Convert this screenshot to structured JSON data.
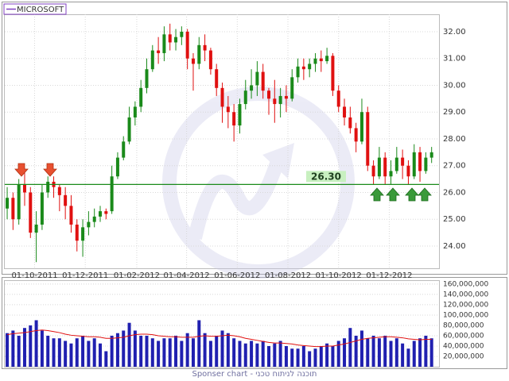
{
  "chart_data": [
    {
      "type": "candlestick",
      "series": [
        {
          "name": "MICROSOFT",
          "color": "#8040c0"
        }
      ],
      "up_color": "#1a8a1a",
      "down_color": "#e01010",
      "x": [
        "29-08-2011",
        "05-09-2011",
        "12-09-2011",
        "19-09-2011",
        "26-09-2011",
        "03-10-2011",
        "10-10-2011",
        "17-10-2011",
        "24-10-2011",
        "31-10-2011",
        "07-11-2011",
        "14-11-2011",
        "21-11-2011",
        "28-11-2011",
        "05-12-2011",
        "12-12-2011",
        "19-12-2011",
        "26-12-2011",
        "02-01-2012",
        "09-01-2012",
        "16-01-2012",
        "23-01-2012",
        "30-01-2012",
        "06-02-2012",
        "13-02-2012",
        "20-02-2012",
        "27-02-2012",
        "05-03-2012",
        "12-03-2012",
        "19-03-2012",
        "26-03-2012",
        "02-04-2012",
        "09-04-2012",
        "16-04-2012",
        "23-04-2012",
        "30-04-2012",
        "07-05-2012",
        "14-05-2012",
        "21-05-2012",
        "28-05-2012",
        "04-06-2012",
        "11-06-2012",
        "18-06-2012",
        "25-06-2012",
        "02-07-2012",
        "09-07-2012",
        "16-07-2012",
        "23-07-2012",
        "30-07-2012",
        "06-08-2012",
        "13-08-2012",
        "20-08-2012",
        "27-08-2012",
        "03-09-2012",
        "10-09-2012",
        "17-09-2012",
        "24-09-2012",
        "01-10-2012",
        "08-10-2012",
        "15-10-2012",
        "22-10-2012",
        "29-10-2012",
        "05-11-2012",
        "12-11-2012",
        "19-11-2012",
        "26-11-2012",
        "03-12-2012",
        "10-12-2012",
        "17-12-2012",
        "24-12-2012",
        "31-12-2012",
        "07-01-2013",
        "14-01-2013",
        "21-01-2013"
      ],
      "open": [
        25.4,
        25.8,
        25.0,
        26.3,
        26.0,
        24.5,
        24.8,
        26.0,
        26.4,
        26.2,
        25.9,
        25.5,
        24.8,
        24.2,
        24.7,
        24.9,
        25.1,
        25.3,
        25.3,
        26.6,
        27.3,
        27.9,
        28.8,
        29.2,
        29.9,
        30.6,
        31.3,
        31.2,
        31.9,
        31.6,
        31.8,
        32.0,
        31.0,
        30.8,
        31.5,
        31.3,
        30.6,
        29.9,
        29.2,
        29.0,
        28.5,
        29.3,
        29.8,
        30.0,
        30.5,
        29.8,
        29.5,
        29.3,
        29.6,
        29.5,
        30.3,
        30.7,
        30.6,
        30.8,
        31.0,
        30.9,
        31.1,
        29.8,
        29.2,
        28.8,
        28.4,
        27.9,
        29.0,
        27.0,
        26.6,
        27.3,
        26.6,
        26.8,
        27.3,
        27.0,
        26.6,
        27.5,
        26.8,
        27.3
      ],
      "high": [
        26.2,
        26.0,
        26.5,
        26.9,
        26.2,
        25.3,
        26.3,
        26.6,
        26.6,
        26.3,
        26.2,
        25.9,
        25.0,
        25.0,
        25.3,
        25.4,
        25.5,
        25.4,
        27.0,
        27.5,
        28.1,
        29.2,
        29.4,
        30.2,
        31.0,
        31.5,
        31.8,
        32.2,
        32.3,
        32.1,
        32.2,
        32.1,
        31.2,
        31.8,
        31.9,
        31.4,
        30.8,
        30.1,
        29.6,
        29.3,
        29.5,
        30.2,
        30.6,
        30.9,
        30.8,
        29.9,
        30.2,
        29.9,
        30.0,
        30.6,
        31.0,
        31.0,
        31.0,
        31.2,
        31.3,
        31.4,
        31.2,
        30.0,
        29.5,
        29.2,
        28.6,
        29.5,
        29.2,
        27.2,
        27.7,
        27.5,
        27.2,
        27.7,
        27.6,
        27.2,
        27.8,
        27.7,
        27.5,
        27.7
      ],
      "low": [
        25.0,
        24.6,
        24.8,
        25.5,
        24.3,
        23.4,
        24.6,
        25.8,
        25.8,
        25.3,
        25.0,
        24.5,
        23.8,
        23.6,
        24.4,
        24.7,
        24.9,
        25.0,
        25.2,
        26.5,
        27.2,
        27.8,
        28.5,
        29.0,
        29.7,
        30.5,
        30.8,
        30.9,
        31.3,
        31.3,
        31.5,
        30.6,
        29.8,
        30.6,
        30.9,
        30.4,
        29.6,
        28.6,
        28.4,
        27.9,
        28.2,
        29.1,
        29.5,
        29.6,
        29.5,
        28.9,
        28.6,
        28.8,
        29.0,
        29.4,
        30.1,
        30.2,
        30.3,
        30.5,
        30.5,
        30.8,
        29.6,
        29.0,
        28.5,
        28.2,
        27.5,
        27.8,
        26.8,
        26.3,
        26.5,
        26.3,
        26.3,
        26.7,
        26.5,
        26.3,
        26.5,
        26.4,
        26.7,
        27.1
      ],
      "close": [
        25.8,
        25.0,
        26.3,
        26.0,
        24.5,
        24.8,
        26.0,
        26.4,
        26.2,
        25.9,
        25.5,
        24.8,
        24.2,
        24.7,
        24.9,
        25.1,
        25.3,
        25.2,
        26.6,
        27.3,
        27.9,
        28.8,
        29.2,
        29.9,
        30.6,
        31.3,
        31.2,
        31.9,
        31.6,
        31.8,
        32.0,
        31.0,
        30.8,
        31.5,
        31.3,
        30.6,
        29.9,
        29.2,
        29.0,
        28.5,
        29.3,
        29.8,
        30.0,
        30.5,
        29.8,
        29.5,
        29.3,
        29.6,
        29.5,
        30.3,
        30.7,
        30.6,
        30.8,
        31.0,
        30.9,
        31.1,
        29.8,
        29.2,
        28.8,
        28.4,
        27.9,
        29.0,
        27.0,
        26.6,
        27.3,
        26.6,
        26.8,
        27.3,
        27.0,
        26.6,
        27.5,
        26.8,
        27.3,
        27.5
      ],
      "xlim": [
        "28-08-2011",
        "28-01-2013"
      ],
      "xticks": [
        "01-10-2011",
        "01-12-2011",
        "01-02-2012",
        "01-04-2012",
        "01-06-2012",
        "01-08-2012",
        "01-10-2012",
        "01-12-2012"
      ],
      "ylim": [
        23.17,
        32.65
      ],
      "yticks": [
        {
          "value": 24,
          "label": "24.00"
        },
        {
          "value": 25,
          "label": "25.00"
        },
        {
          "value": 26,
          "label": "26.00"
        },
        {
          "value": 27,
          "label": "27.00"
        },
        {
          "value": 28,
          "label": "28.00"
        },
        {
          "value": 29,
          "label": "29.00"
        },
        {
          "value": 30,
          "label": "30.00"
        },
        {
          "value": 31,
          "label": "31.00"
        },
        {
          "value": 32,
          "label": "32.00"
        }
      ],
      "reference_line": {
        "value": 26.3,
        "label": "26.30",
        "color": "#1a8a1a"
      },
      "grid": true
    },
    {
      "type": "bar",
      "color": "#2020b0",
      "values": [
        65000000,
        70000000,
        60000000,
        75000000,
        80000000,
        90000000,
        70000000,
        60000000,
        55000000,
        55000000,
        50000000,
        45000000,
        55000000,
        60000000,
        50000000,
        55000000,
        45000000,
        30000000,
        60000000,
        65000000,
        70000000,
        85000000,
        70000000,
        60000000,
        60000000,
        55000000,
        50000000,
        55000000,
        55000000,
        60000000,
        50000000,
        65000000,
        55000000,
        90000000,
        65000000,
        50000000,
        60000000,
        70000000,
        65000000,
        55000000,
        50000000,
        45000000,
        50000000,
        45000000,
        50000000,
        40000000,
        45000000,
        50000000,
        40000000,
        35000000,
        35000000,
        40000000,
        30000000,
        35000000,
        40000000,
        45000000,
        40000000,
        50000000,
        55000000,
        75000000,
        60000000,
        70000000,
        55000000,
        60000000,
        55000000,
        60000000,
        50000000,
        55000000,
        45000000,
        35000000,
        50000000,
        55000000,
        60000000,
        55000000
      ],
      "moving_average": {
        "color": "#e01010",
        "values": [
          62000000,
          64000000,
          65000000,
          66000000,
          68000000,
          70000000,
          71000000,
          70000000,
          68000000,
          66000000,
          63000000,
          61000000,
          60000000,
          59000000,
          58000000,
          58000000,
          57000000,
          55000000,
          55000000,
          56000000,
          57000000,
          60000000,
          62000000,
          63000000,
          63000000,
          62000000,
          60000000,
          59000000,
          58000000,
          58000000,
          57000000,
          57000000,
          57000000,
          59000000,
          60000000,
          59000000,
          59000000,
          60000000,
          61000000,
          60000000,
          58000000,
          55000000,
          53000000,
          51000000,
          49000000,
          47000000,
          46000000,
          46000000,
          45000000,
          44000000,
          42000000,
          41000000,
          40000000,
          39000000,
          39000000,
          40000000,
          40000000,
          42000000,
          44000000,
          47000000,
          50000000,
          53000000,
          55000000,
          56000000,
          57000000,
          58000000,
          58000000,
          57000000,
          56000000,
          54000000,
          53000000,
          52000000,
          53000000,
          53000000
        ]
      },
      "ylim": [
        0,
        166000000
      ],
      "yticks": [
        {
          "value": 20000000,
          "label": "20,000,000"
        },
        {
          "value": 40000000,
          "label": "40,000,000"
        },
        {
          "value": 60000000,
          "label": "60,000,000"
        },
        {
          "value": 80000000,
          "label": "80,000,000"
        },
        {
          "value": 100000000,
          "label": "100,000,000"
        },
        {
          "value": 120000000,
          "label": "120,000,000"
        },
        {
          "value": 140000000,
          "label": "140,000,000"
        },
        {
          "value": 160000000,
          "label": "160,000,000"
        }
      ],
      "grid": true
    }
  ],
  "footer": "Sponser chart - תוכנה לניתוח טכני"
}
